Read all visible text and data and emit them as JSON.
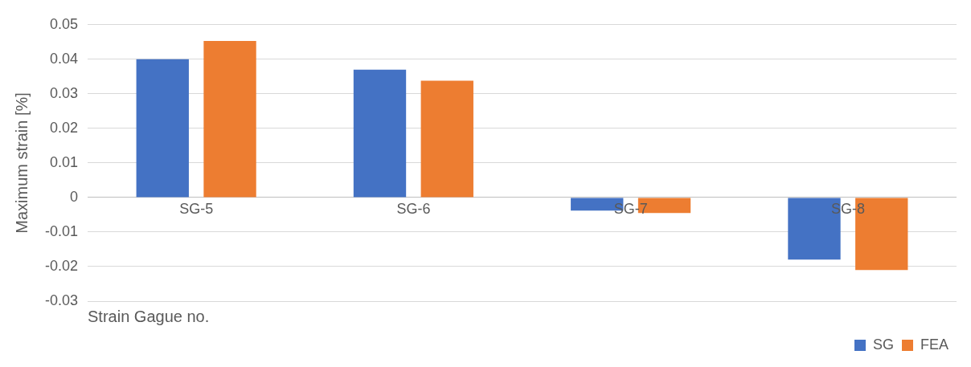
{
  "chart_data": {
    "type": "bar",
    "xlabel": "Strain Gague no.",
    "ylabel": "Maximum strain [%]",
    "categories": [
      "SG-5",
      "SG-6",
      "SG-7",
      "SG-8"
    ],
    "series": [
      {
        "name": "SG",
        "color": "#4472c4",
        "values": [
          0.04,
          0.037,
          -0.0038,
          -0.018
        ]
      },
      {
        "name": "FEA",
        "color": "#ed7d31",
        "values": [
          0.0453,
          0.0338,
          -0.0045,
          -0.021
        ]
      }
    ],
    "ylim": [
      -0.03,
      0.05
    ],
    "yticks": [
      -0.03,
      -0.02,
      -0.01,
      0,
      0.01,
      0.02,
      0.03,
      0.04,
      0.05
    ],
    "grid": "y",
    "legend": "bottom right"
  }
}
